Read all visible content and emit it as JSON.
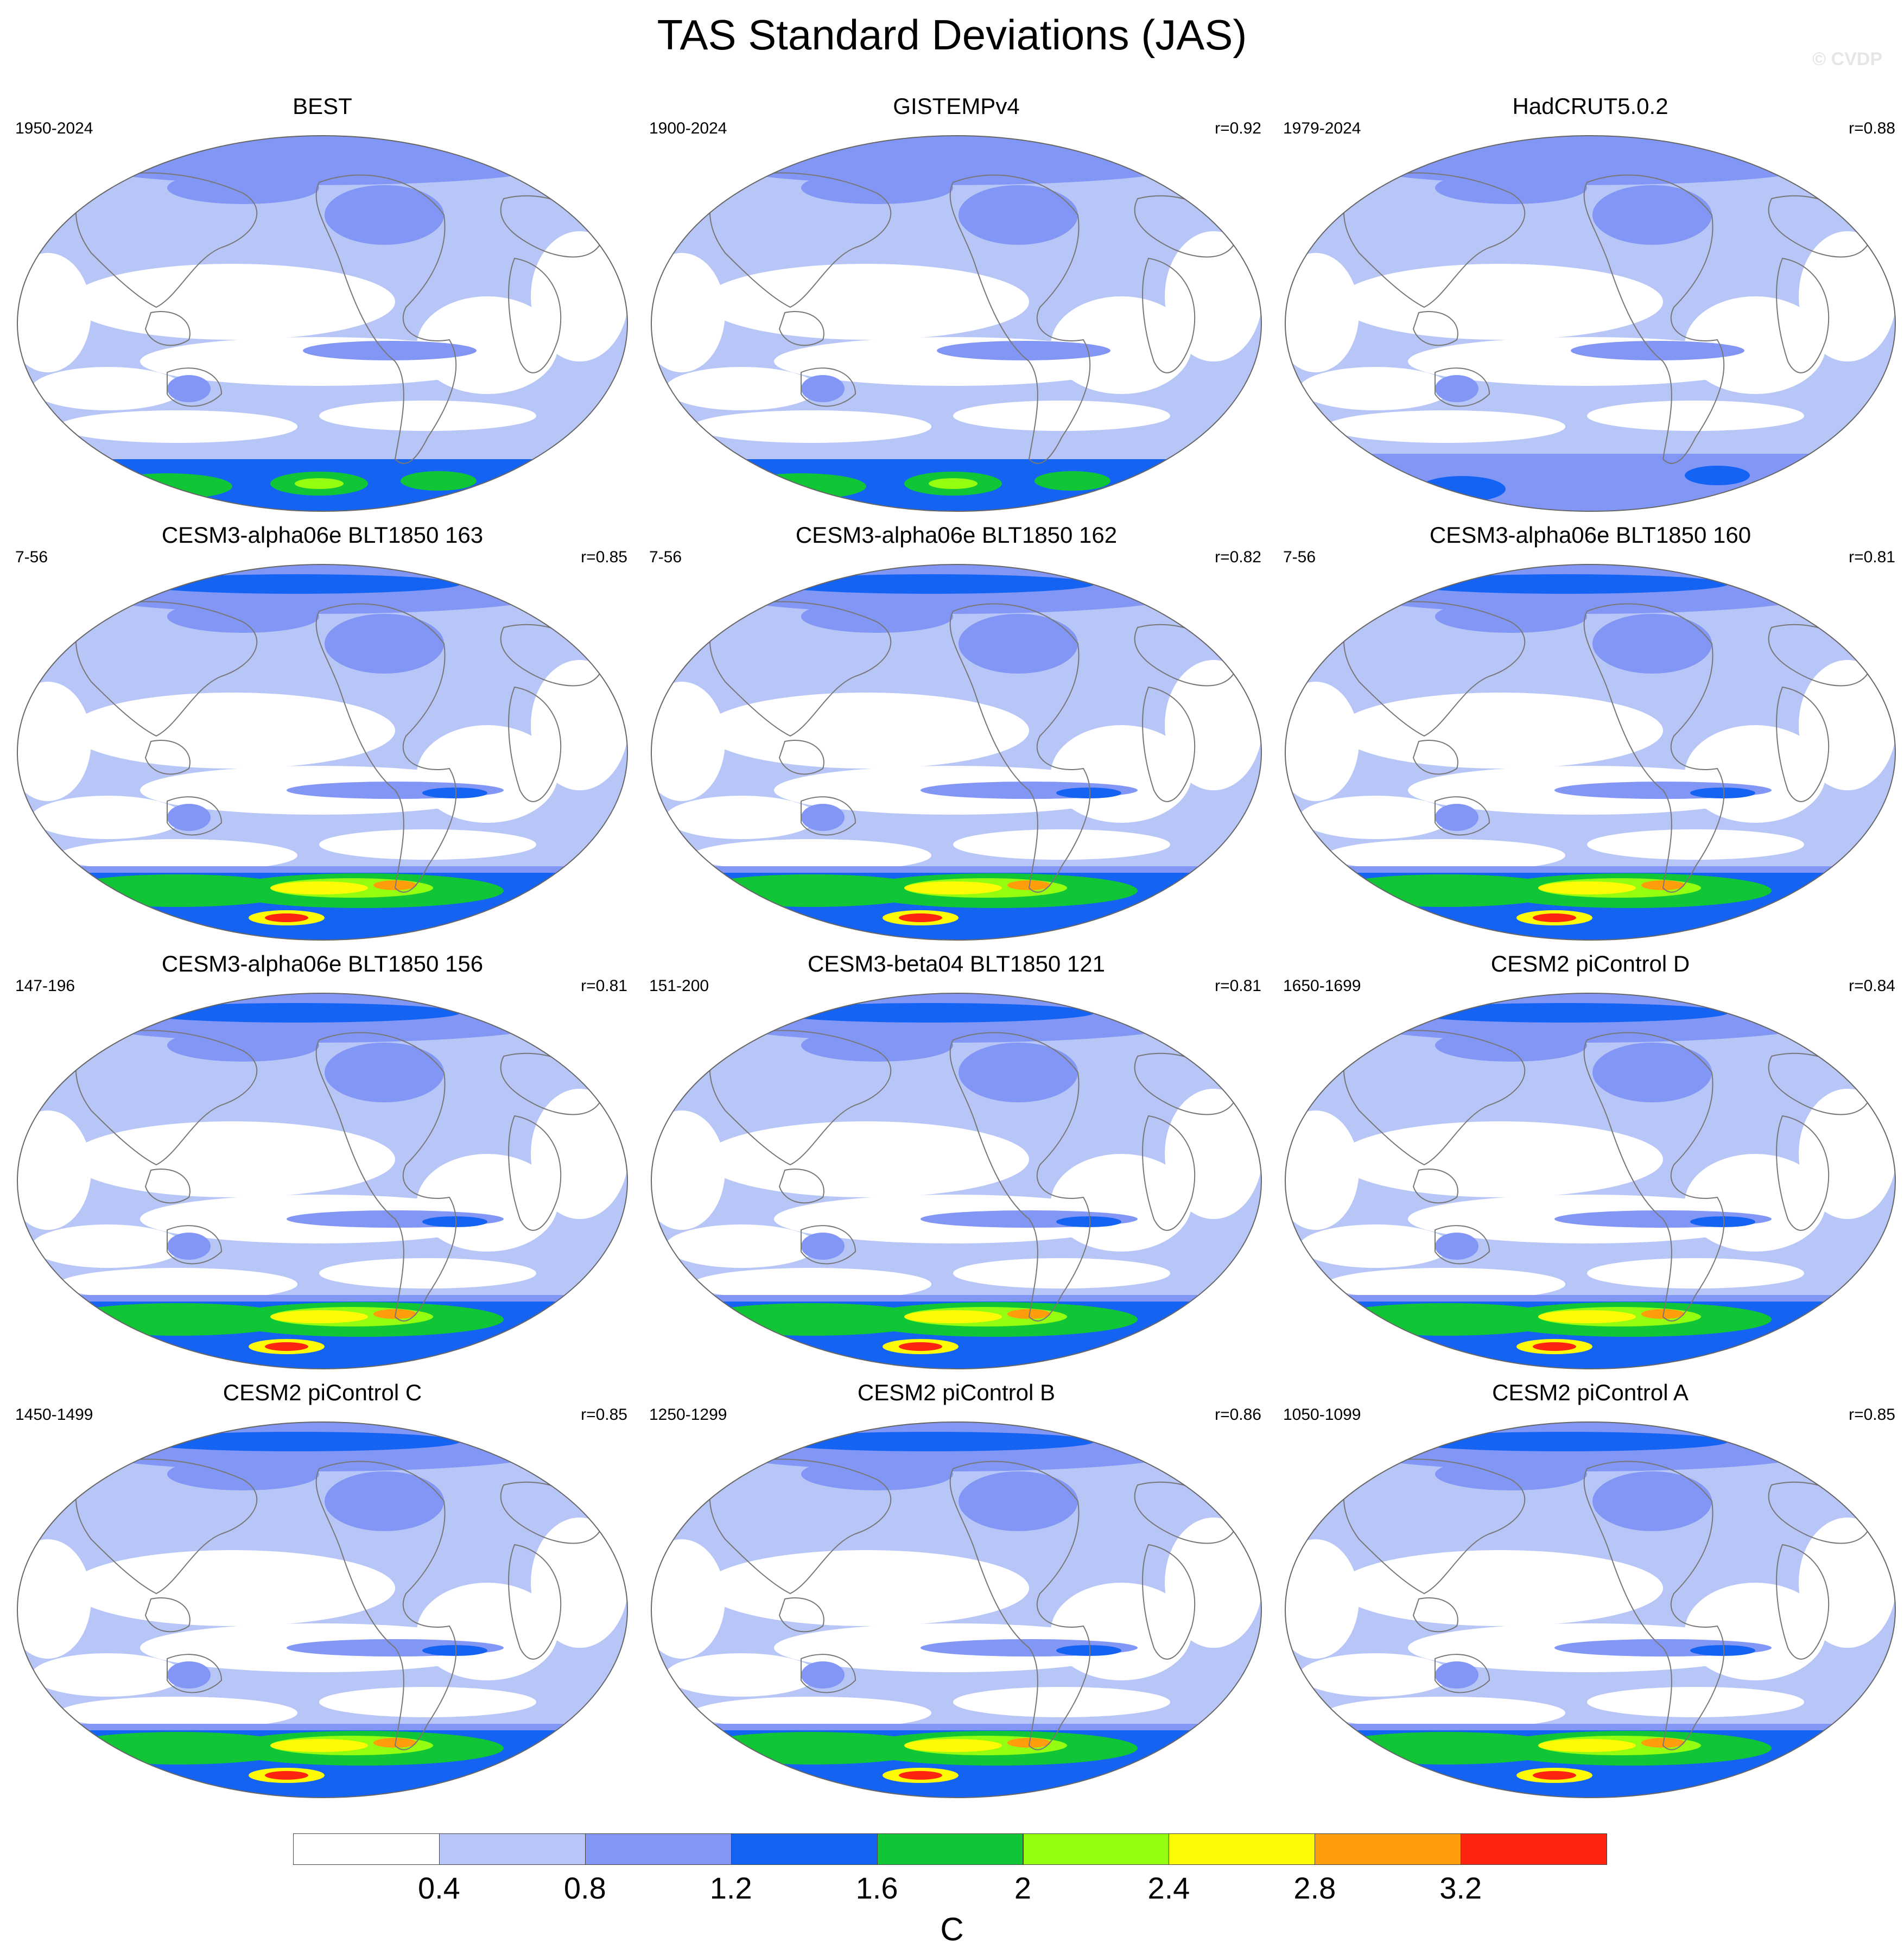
{
  "title": "TAS Standard Deviations (JAS)",
  "watermark": "© CVDP",
  "colors": {
    "levels": [
      "#ffffff",
      "#b7c6f7",
      "#8296f5",
      "#1563f3",
      "#10c536",
      "#95fd10",
      "#fffb07",
      "#ff9d0b",
      "#ff2411"
    ],
    "coast": "#777777",
    "outline": "#666666"
  },
  "colorbar": {
    "tick_labels": [
      "0.4",
      "0.8",
      "1.2",
      "1.6",
      "2",
      "2.4",
      "2.8",
      "3.2"
    ],
    "units": "C"
  },
  "panels": [
    {
      "title": "BEST",
      "range": "1950-2024",
      "corr": "",
      "antarctic": "obs"
    },
    {
      "title": "GISTEMPv4",
      "range": "1900-2024",
      "corr": "r=0.92",
      "antarctic": "obs"
    },
    {
      "title": "HadCRUT5.0.2",
      "range": "1979-2024",
      "corr": "r=0.88",
      "antarctic": "obs2"
    },
    {
      "title": "CESM3-alpha06e BLT1850 163",
      "range": "7-56",
      "corr": "r=0.85",
      "antarctic": "model"
    },
    {
      "title": "CESM3-alpha06e BLT1850 162",
      "range": "7-56",
      "corr": "r=0.82",
      "antarctic": "model"
    },
    {
      "title": "CESM3-alpha06e BLT1850 160",
      "range": "7-56",
      "corr": "r=0.81",
      "antarctic": "model"
    },
    {
      "title": "CESM3-alpha06e BLT1850 156",
      "range": "147-196",
      "corr": "r=0.81",
      "antarctic": "model"
    },
    {
      "title": "CESM3-beta04 BLT1850 121",
      "range": "151-200",
      "corr": "r=0.81",
      "antarctic": "model"
    },
    {
      "title": "CESM2 piControl D",
      "range": "1650-1699",
      "corr": "r=0.84",
      "antarctic": "model"
    },
    {
      "title": "CESM2 piControl C",
      "range": "1450-1499",
      "corr": "r=0.85",
      "antarctic": "model"
    },
    {
      "title": "CESM2 piControl B",
      "range": "1250-1299",
      "corr": "r=0.86",
      "antarctic": "model"
    },
    {
      "title": "CESM2 piControl A",
      "range": "1050-1099",
      "corr": "r=0.85",
      "antarctic": "model"
    }
  ]
}
